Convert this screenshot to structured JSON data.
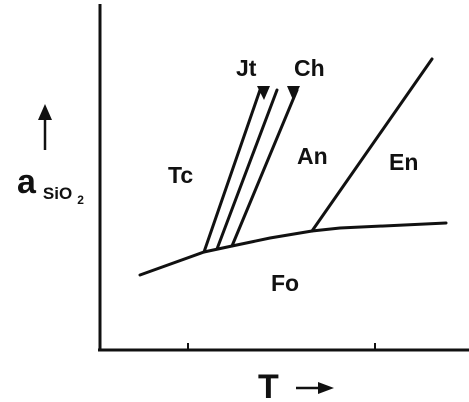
{
  "diagram": {
    "x_axis_label": "T",
    "x_axis_arrow": "→",
    "y_axis_label": {
      "main": "a",
      "sub": "SiO",
      "subsub": "2"
    },
    "phases": {
      "tc": "Tc",
      "jt": "Jt",
      "ch": "Ch",
      "an": "An",
      "en": "En",
      "fo": "Fo"
    },
    "line_color": "#111111",
    "background": "#ffffff"
  }
}
